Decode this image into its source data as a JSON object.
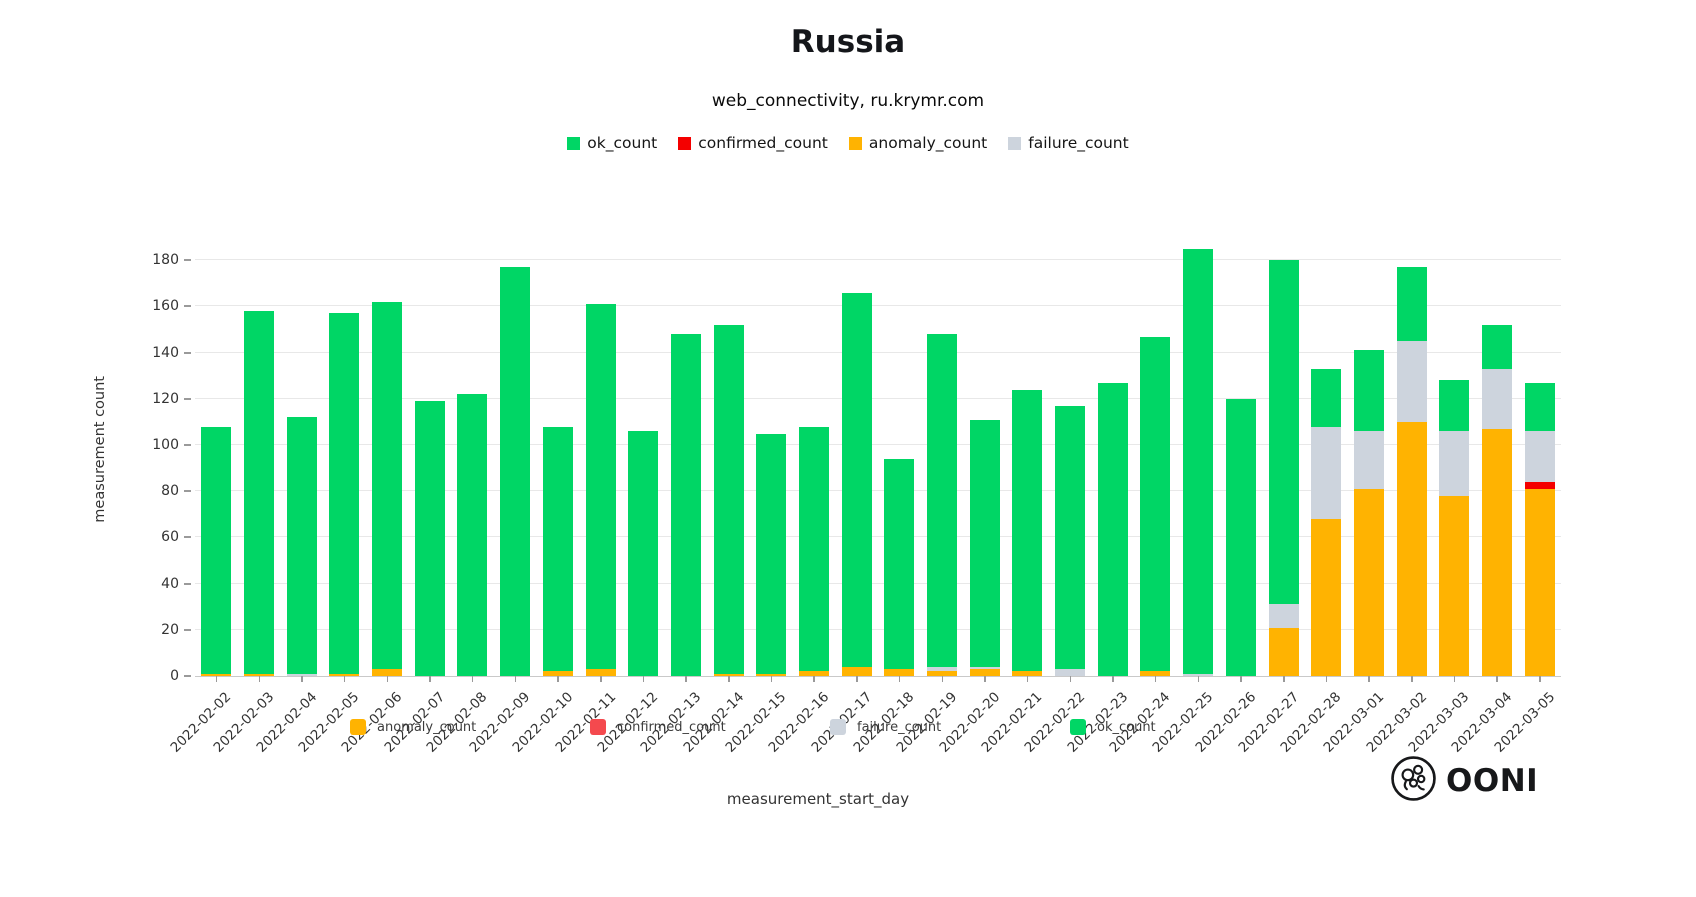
{
  "title": "Russia",
  "subtitle": "web_connectivity, ru.krymr.com",
  "axes": {
    "x_title": "measurement_start_day",
    "y_title": "measurement count",
    "y_ticks": [
      0,
      20,
      40,
      60,
      80,
      100,
      120,
      140,
      160,
      180
    ],
    "y_max": 197
  },
  "legend_top": {
    "items": [
      {
        "label": "ok_count",
        "color": "#00d665"
      },
      {
        "label": "confirmed_count",
        "color": "#f40000"
      },
      {
        "label": "anomaly_count",
        "color": "#ffb301"
      },
      {
        "label": "failure_count",
        "color": "#cdd4dd"
      }
    ]
  },
  "legend_bottom": {
    "items": [
      {
        "label": "anomaly_count",
        "color": "#ffb301"
      },
      {
        "label": "confirmed_count",
        "color": "#f4494e"
      },
      {
        "label": "failure_count",
        "color": "#cdd4dd"
      },
      {
        "label": "ok_count",
        "color": "#00d665"
      }
    ]
  },
  "logo": {
    "text": "OONI"
  },
  "chart_data": {
    "type": "bar",
    "stacked": true,
    "title": "Russia",
    "subtitle": "web_connectivity, ru.krymr.com",
    "xlabel": "measurement_start_day",
    "ylabel": "measurement count",
    "ylim": [
      0,
      197
    ],
    "yticks": [
      0,
      20,
      40,
      60,
      80,
      100,
      120,
      140,
      160,
      180
    ],
    "grid": "horizontal",
    "legend_position": "top",
    "x": [
      "2022-02-02",
      "2022-02-03",
      "2022-02-04",
      "2022-02-05",
      "2022-02-06",
      "2022-02-07",
      "2022-02-08",
      "2022-02-09",
      "2022-02-10",
      "2022-02-11",
      "2022-02-12",
      "2022-02-13",
      "2022-02-14",
      "2022-02-15",
      "2022-02-16",
      "2022-02-17",
      "2022-02-18",
      "2022-02-19",
      "2022-02-20",
      "2022-02-21",
      "2022-02-22",
      "2022-02-23",
      "2022-02-24",
      "2022-02-25",
      "2022-02-26",
      "2022-02-27",
      "2022-02-28",
      "2022-03-01",
      "2022-03-02",
      "2022-03-03",
      "2022-03-04",
      "2022-03-05"
    ],
    "series": [
      {
        "name": "anomaly_count",
        "color": "#ffb301",
        "values": [
          1,
          1,
          0,
          1,
          3,
          0,
          0,
          0,
          2,
          3,
          0,
          0,
          1,
          1,
          2,
          4,
          3,
          2,
          3,
          2,
          0,
          0,
          2,
          0,
          0,
          21,
          68,
          81,
          110,
          78,
          107,
          81
        ]
      },
      {
        "name": "confirmed_count",
        "color": "#f40000",
        "values": [
          0,
          0,
          0,
          0,
          0,
          0,
          0,
          0,
          0,
          0,
          0,
          0,
          0,
          0,
          0,
          0,
          0,
          0,
          0,
          0,
          0,
          0,
          0,
          0,
          0,
          0,
          0,
          0,
          0,
          0,
          0,
          3
        ]
      },
      {
        "name": "failure_count",
        "color": "#cdd4dd",
        "values": [
          0,
          0,
          1,
          0,
          0,
          0,
          0,
          0,
          0,
          0,
          0,
          0,
          0,
          0,
          0,
          0,
          0,
          2,
          1,
          0,
          3,
          0,
          0,
          1,
          0,
          10,
          40,
          25,
          35,
          28,
          26,
          22
        ]
      },
      {
        "name": "ok_count",
        "color": "#00d665",
        "values": [
          107,
          157,
          111,
          156,
          159,
          119,
          122,
          177,
          106,
          158,
          106,
          148,
          151,
          104,
          106,
          162,
          91,
          144,
          107,
          122,
          114,
          127,
          145,
          184,
          120,
          149,
          25,
          35,
          32,
          22,
          19,
          21
        ]
      }
    ]
  }
}
